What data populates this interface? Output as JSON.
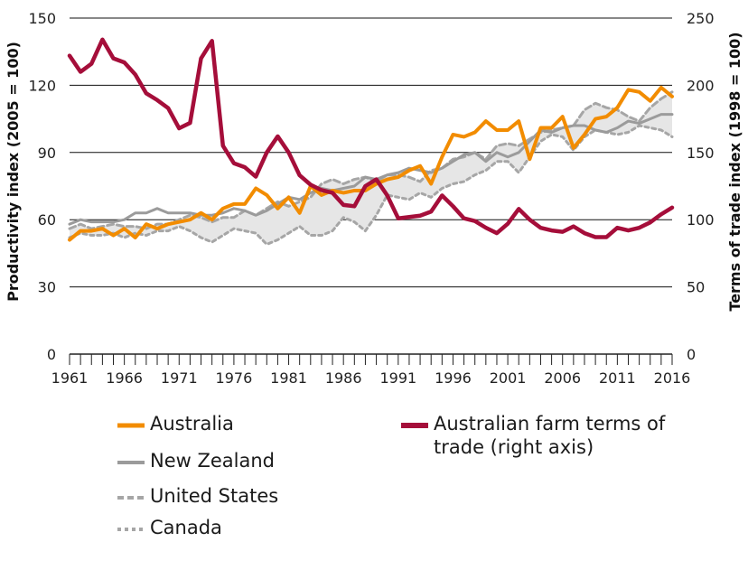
{
  "chart_data": {
    "type": "line",
    "x_start": 1961,
    "x_end": 2016,
    "x_ticks": [
      "1961",
      "1966",
      "1971",
      "1976",
      "1981",
      "1986",
      "1991",
      "1996",
      "2001",
      "2006",
      "2011",
      "2016"
    ],
    "left_axis": {
      "label": "Productivity index (2005 = 100)",
      "ylim": [
        0,
        150
      ],
      "ticks": [
        "0",
        "30",
        "60",
        "90",
        "120",
        "150"
      ]
    },
    "right_axis": {
      "label": "Terms of trade index (1998 = 100)",
      "ylim": [
        0,
        250
      ],
      "ticks": [
        "0",
        "50",
        "100",
        "150",
        "200",
        "250"
      ]
    },
    "grid": true,
    "legend_position": "bottom",
    "band": {
      "between": [
        "United States",
        "Canada"
      ],
      "color": "#e6e6e6"
    },
    "series": [
      {
        "name": "Australia",
        "axis": "left",
        "color": "#f28c00",
        "style": "solid",
        "width": 4,
        "values": [
          51,
          55,
          55,
          56,
          53,
          56,
          52,
          58,
          56,
          58,
          59,
          60,
          63,
          60,
          65,
          67,
          67,
          74,
          71,
          65,
          70,
          63,
          75,
          71,
          73,
          72,
          73,
          73,
          76,
          78,
          79,
          82,
          84,
          76,
          88,
          98,
          97,
          99,
          104,
          100,
          100,
          104,
          87,
          101,
          101,
          106,
          92,
          98,
          105,
          106,
          110,
          118,
          117,
          113,
          119,
          115
        ]
      },
      {
        "name": "New Zealand",
        "axis": "left",
        "color": "#9b9b9b",
        "style": "solid",
        "width": 3,
        "values": [
          58,
          60,
          59,
          59,
          59,
          60,
          63,
          63,
          65,
          63,
          63,
          63,
          62,
          62,
          63,
          65,
          64,
          62,
          64,
          67,
          70,
          69,
          72,
          74,
          73,
          74,
          75,
          79,
          78,
          80,
          81,
          83,
          82,
          81,
          83,
          86,
          89,
          90,
          86,
          90,
          88,
          90,
          95,
          100,
          99,
          101,
          102,
          102,
          100,
          99,
          101,
          104,
          103,
          105,
          107,
          107
        ]
      },
      {
        "name": "United States",
        "axis": "left",
        "color": "#a6a6a6",
        "style": "dashed",
        "width": 3,
        "values": [
          56,
          58,
          56,
          57,
          58,
          57,
          57,
          56,
          58,
          58,
          60,
          62,
          61,
          59,
          61,
          61,
          64,
          62,
          65,
          68,
          66,
          68,
          70,
          76,
          78,
          76,
          78,
          79,
          77,
          80,
          80,
          79,
          77,
          82,
          83,
          87,
          88,
          90,
          87,
          93,
          94,
          93,
          96,
          99,
          100,
          101,
          102,
          109,
          112,
          110,
          109,
          106,
          104,
          110,
          114,
          117
        ]
      },
      {
        "name": "Canada",
        "axis": "left",
        "color": "#a6a6a6",
        "style": "dotted",
        "width": 3,
        "values": [
          52,
          54,
          53,
          53,
          54,
          52,
          54,
          53,
          55,
          55,
          57,
          55,
          52,
          50,
          53,
          56,
          55,
          54,
          49,
          51,
          54,
          57,
          53,
          53,
          55,
          61,
          59,
          55,
          62,
          71,
          70,
          69,
          72,
          70,
          74,
          76,
          77,
          80,
          82,
          86,
          86,
          81,
          88,
          95,
          98,
          97,
          91,
          97,
          100,
          99,
          98,
          99,
          102,
          101,
          100,
          97
        ]
      },
      {
        "name": "Australian farm terms of trade (right axis)",
        "axis": "right",
        "color": "#a50e3a",
        "style": "solid",
        "width": 4.5,
        "values": [
          222,
          210,
          216,
          234,
          220,
          217,
          208,
          194,
          189,
          183,
          168,
          172,
          220,
          233,
          155,
          142,
          139,
          132,
          150,
          162,
          150,
          133,
          126,
          122,
          120,
          111,
          110,
          125,
          130,
          118,
          101,
          102,
          103,
          106,
          118,
          110,
          101,
          99,
          94,
          90,
          97,
          108,
          100,
          94,
          92,
          91,
          95,
          90,
          87,
          87,
          94,
          92,
          94,
          98,
          104,
          109
        ]
      }
    ]
  }
}
